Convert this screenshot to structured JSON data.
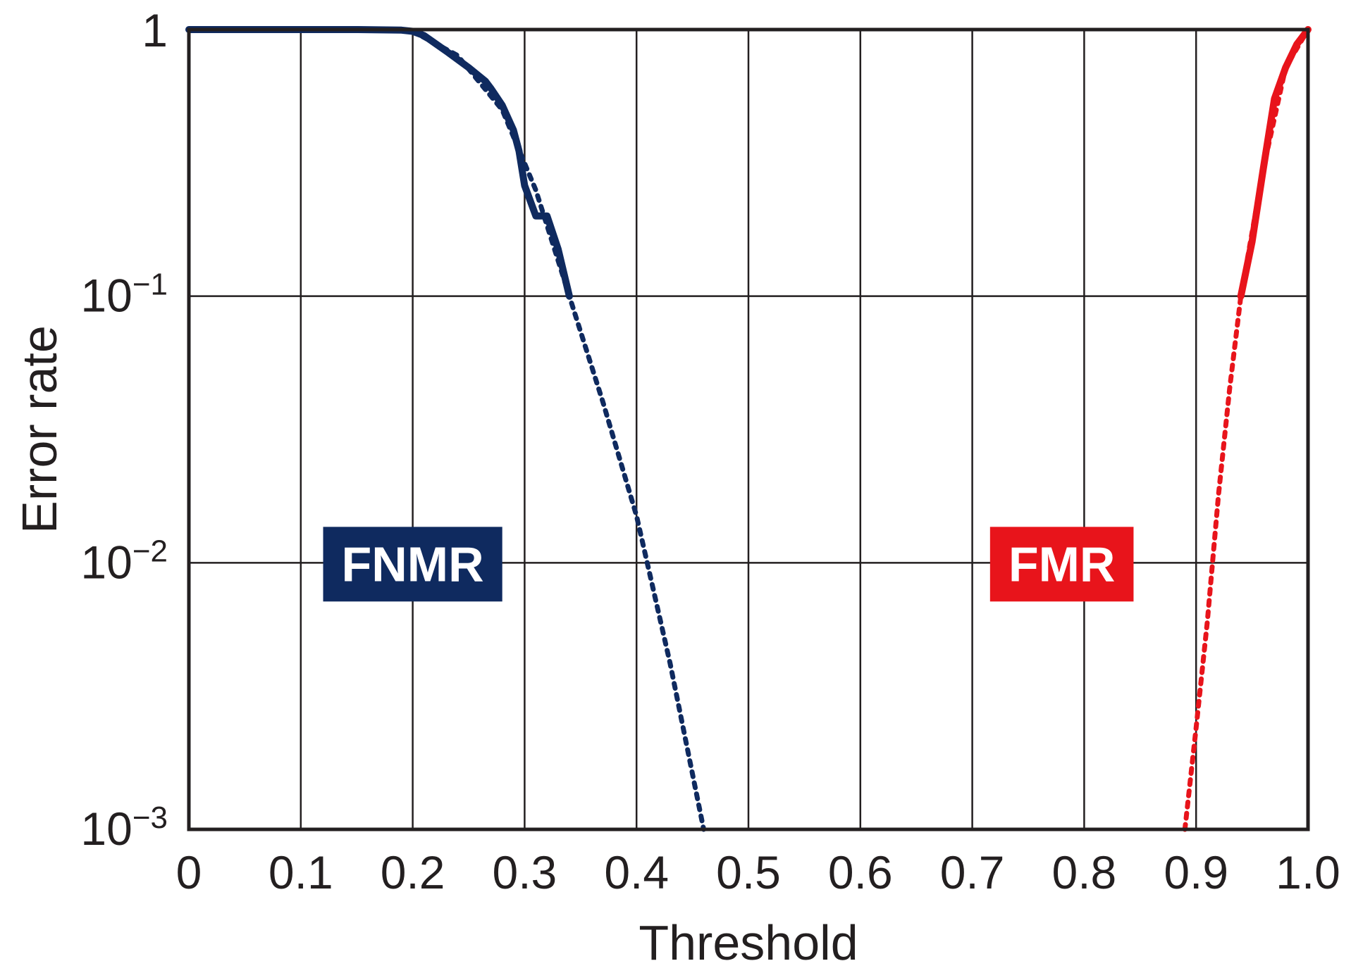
{
  "chart_data": {
    "type": "line",
    "title": "",
    "xlabel": "Threshold",
    "ylabel": "Error rate",
    "xlim": [
      0,
      1.0
    ],
    "ylim": [
      0.001,
      1
    ],
    "yscale": "log",
    "grid": true,
    "x_ticks": [
      {
        "value": 0,
        "label": "0"
      },
      {
        "value": 0.1,
        "label": "0.1"
      },
      {
        "value": 0.2,
        "label": "0.2"
      },
      {
        "value": 0.3,
        "label": "0.3"
      },
      {
        "value": 0.4,
        "label": "0.4"
      },
      {
        "value": 0.5,
        "label": "0.5"
      },
      {
        "value": 0.6,
        "label": "0.6"
      },
      {
        "value": 0.7,
        "label": "0.7"
      },
      {
        "value": 0.8,
        "label": "0.8"
      },
      {
        "value": 0.9,
        "label": "0.9"
      },
      {
        "value": 1.0,
        "label": "1.0"
      }
    ],
    "y_ticks": [
      {
        "value": 1,
        "base": "1",
        "exp": ""
      },
      {
        "value": 0.1,
        "base": "10",
        "exp": "−1"
      },
      {
        "value": 0.01,
        "base": "10",
        "exp": "−2"
      },
      {
        "value": 0.001,
        "base": "10",
        "exp": "−3"
      }
    ],
    "series": [
      {
        "name": "FNMR",
        "color": "#0f2a5f",
        "label_position": [
          0.2,
          0.01
        ],
        "measured": {
          "x": [
            0,
            0.1,
            0.15,
            0.19,
            0.2,
            0.21,
            0.23,
            0.25,
            0.265,
            0.27,
            0.28,
            0.29,
            0.295,
            0.3,
            0.31,
            0.32,
            0.33,
            0.34
          ],
          "y": [
            1,
            1,
            1,
            0.995,
            0.985,
            0.95,
            0.83,
            0.72,
            0.64,
            0.6,
            0.52,
            0.42,
            0.35,
            0.26,
            0.2,
            0.2,
            0.15,
            0.1
          ]
        },
        "extrapolated": {
          "x": [
            0.2,
            0.24,
            0.28,
            0.31,
            0.34,
            0.37,
            0.4,
            0.43,
            0.46
          ],
          "y": [
            0.985,
            0.8,
            0.5,
            0.25,
            0.1,
            0.04,
            0.015,
            0.0042,
            0.001
          ]
        }
      },
      {
        "name": "FMR",
        "color": "#e8141b",
        "label_position": [
          0.78,
          0.01
        ],
        "measured": {
          "x": [
            0.94,
            0.95,
            0.96,
            0.97,
            0.98,
            0.99,
            1.0
          ],
          "y": [
            0.1,
            0.16,
            0.3,
            0.55,
            0.72,
            0.88,
            1
          ]
        },
        "extrapolated": {
          "x": [
            0.89,
            0.9,
            0.91,
            0.92,
            0.93,
            0.94,
            0.96,
            0.98,
            1.0
          ],
          "y": [
            0.001,
            0.0024,
            0.006,
            0.018,
            0.045,
            0.1,
            0.3,
            0.72,
            1
          ]
        }
      }
    ]
  }
}
